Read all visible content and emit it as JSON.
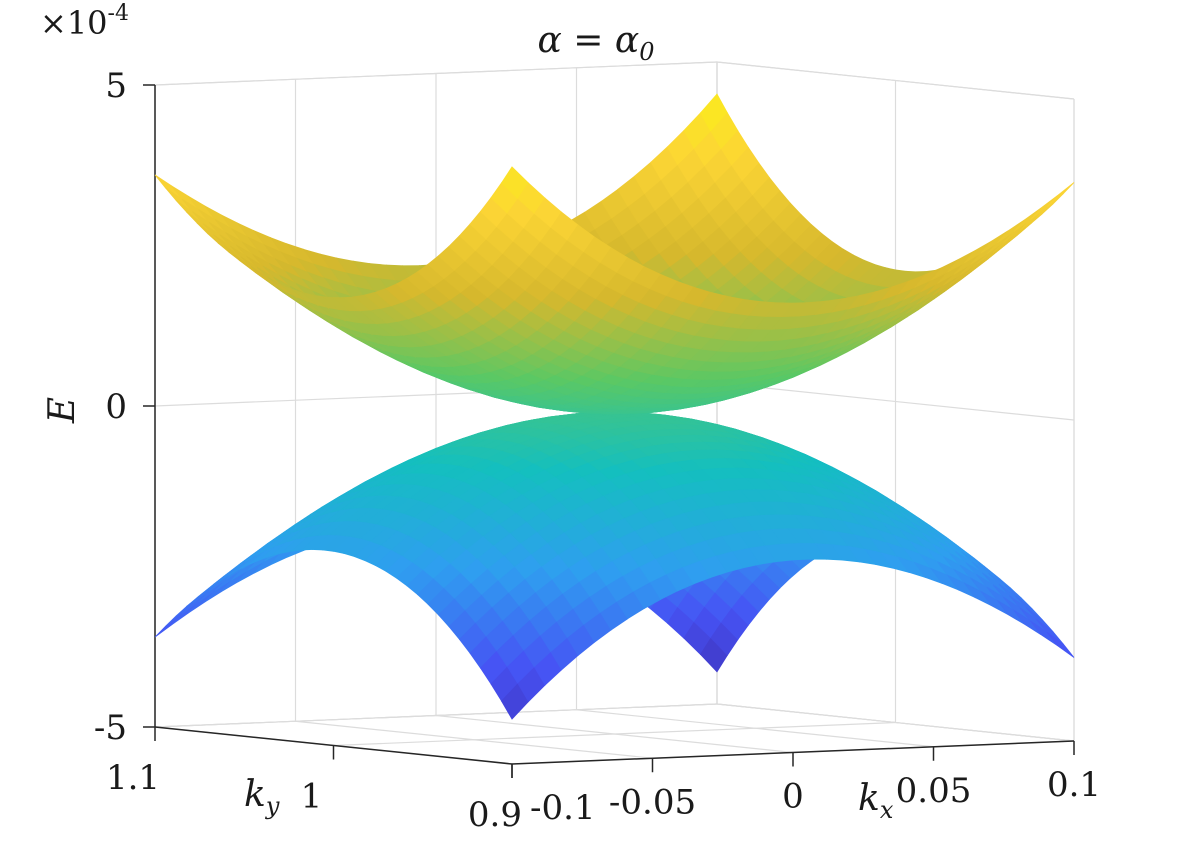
{
  "chart_data": {
    "type": "surface",
    "title": "α = α",
    "title_sub": "0",
    "zlabel": "E",
    "xlabel_base": "k",
    "xlabel_sub": "x",
    "ylabel_base": "k",
    "ylabel_sub": "y",
    "z_exponent_base": "×10",
    "z_exponent_power": "-4",
    "xlim": [
      -0.1,
      0.1
    ],
    "ylim": [
      0.9,
      1.1
    ],
    "zlim": [
      -0.0005,
      0.0005
    ],
    "x_ticks": [
      -0.1,
      -0.05,
      0,
      0.05,
      0.1
    ],
    "x_tick_labels": [
      "-0.1",
      "-0.05",
      "0",
      "0.05",
      "0.1"
    ],
    "y_ticks": [
      1.1,
      1.0,
      0.9
    ],
    "y_tick_labels": [
      "1.1",
      "1",
      "0.9"
    ],
    "z_ticks": [
      0.0005,
      0,
      -0.0005
    ],
    "z_tick_labels": [
      "5",
      "0",
      "-5"
    ],
    "grid": true,
    "colormap": [
      "#3e26a8",
      "#4653f4",
      "#2f9ef0",
      "#14bfbf",
      "#5bc864",
      "#d6b82d",
      "#fcd535",
      "#f9fb0e"
    ],
    "series": [
      {
        "name": "",
        "x": [
          -0.1,
          -0.05,
          0,
          0.05,
          0.1
        ],
        "y": [
          0.9,
          0.95,
          1.0,
          1.05,
          1.1
        ],
        "z_surface": "upper",
        "z_corners": {
          "x-0.1_y0.9": 0.00043,
          "x0.1_y0.9": 0.00037,
          "x-0.1_y1.1": 0.00036,
          "x0.1_y1.1": 0.00045
        },
        "z_min": 0
      },
      {
        "name": "",
        "x": [
          -0.1,
          -0.05,
          0,
          0.05,
          0.1
        ],
        "y": [
          0.9,
          0.95,
          1.0,
          1.05,
          1.1
        ],
        "z_surface": "lower",
        "z_corners": {
          "x-0.1_y0.9": -0.00043,
          "x0.1_y0.9": -0.00037,
          "x-0.1_y1.1": -0.00036,
          "x0.1_y1.1": -0.00045
        },
        "z_max": 0
      }
    ]
  }
}
